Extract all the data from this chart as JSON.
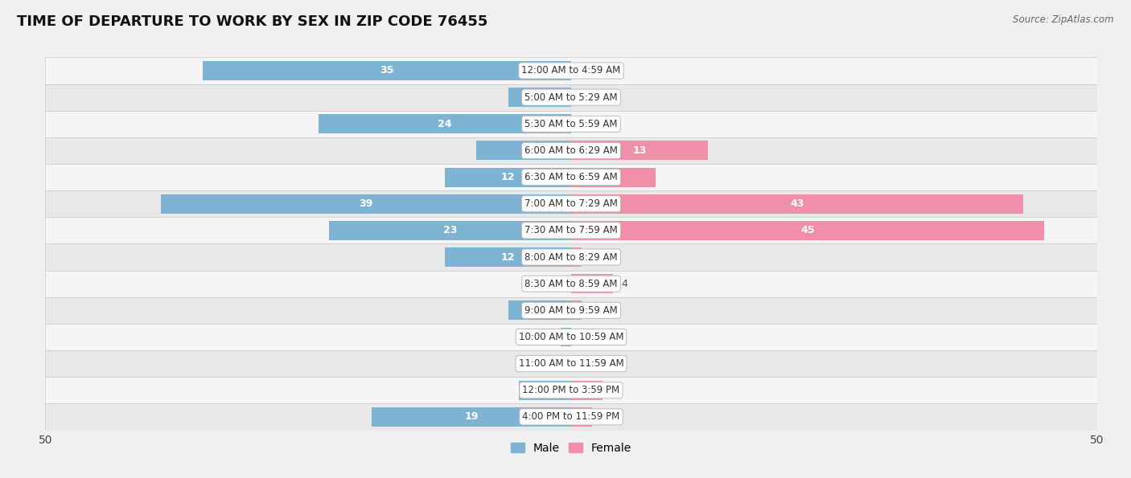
{
  "title": "TIME OF DEPARTURE TO WORK BY SEX IN ZIP CODE 76455",
  "source": "Source: ZipAtlas.com",
  "categories": [
    "12:00 AM to 4:59 AM",
    "5:00 AM to 5:29 AM",
    "5:30 AM to 5:59 AM",
    "6:00 AM to 6:29 AM",
    "6:30 AM to 6:59 AM",
    "7:00 AM to 7:29 AM",
    "7:30 AM to 7:59 AM",
    "8:00 AM to 8:29 AM",
    "8:30 AM to 8:59 AM",
    "9:00 AM to 9:59 AM",
    "10:00 AM to 10:59 AM",
    "11:00 AM to 11:59 AM",
    "12:00 PM to 3:59 PM",
    "4:00 PM to 11:59 PM"
  ],
  "male_values": [
    35,
    6,
    24,
    9,
    12,
    39,
    23,
    12,
    0,
    6,
    1,
    0,
    5,
    19
  ],
  "female_values": [
    0,
    0,
    0,
    13,
    8,
    43,
    45,
    1,
    4,
    1,
    0,
    0,
    3,
    2
  ],
  "male_color": "#7fb3d3",
  "female_color": "#f08faa",
  "axis_max": 50,
  "bg_color": "#f0f0f0",
  "row_bg_even": "#f5f5f5",
  "row_bg_odd": "#e8e8e8",
  "title_fontsize": 13,
  "label_fontsize": 9,
  "category_fontsize": 8.5,
  "axis_label_fontsize": 10,
  "legend_fontsize": 10,
  "bar_height": 0.72,
  "male_inside_color": "white",
  "female_inside_color": "white",
  "male_outside_color": "#555555",
  "female_outside_color": "#555555",
  "inside_threshold": 5
}
